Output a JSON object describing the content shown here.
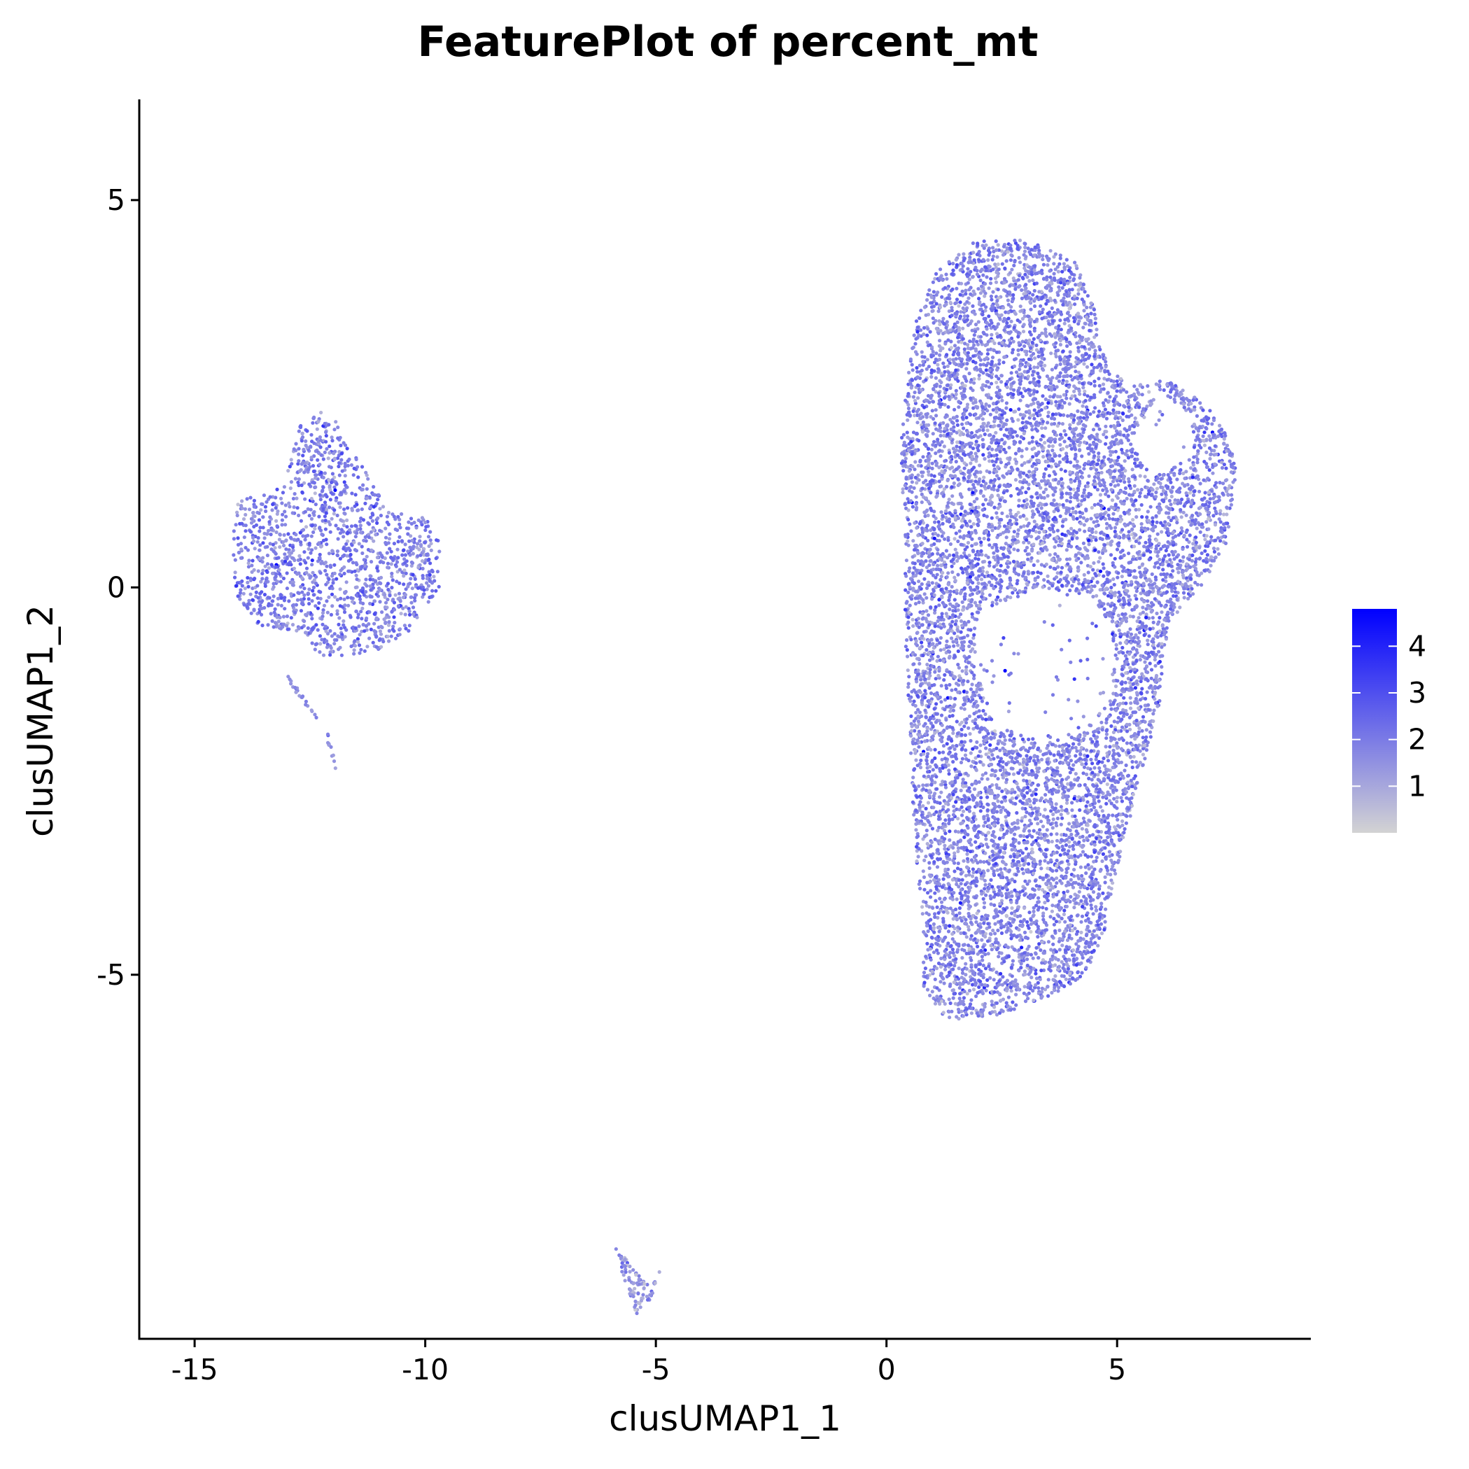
{
  "chart_data": {
    "type": "scatter",
    "title": "FeaturePlot of percent_mt",
    "xlabel": "clusUMAP1_1",
    "ylabel": "clusUMAP1_2",
    "xlim": [
      -16.2,
      9.2
    ],
    "ylim": [
      -9.7,
      6.3
    ],
    "xticks": [
      -15,
      -10,
      -5,
      0,
      5
    ],
    "xtick_labels": [
      "-15",
      "-10",
      "-5",
      "0",
      "5"
    ],
    "yticks": [
      -5,
      0,
      5
    ],
    "ytick_labels": [
      "-5",
      "0",
      "5"
    ],
    "grid": false,
    "legend_position": "right",
    "color_scale": {
      "low_color": "#d3d3d3",
      "high_color": "#0000ff",
      "min": 0,
      "max": 4.8,
      "ticks": [
        1,
        2,
        3,
        4
      ],
      "tick_labels": [
        "1",
        "2",
        "3",
        "4"
      ]
    },
    "clusters": [
      {
        "polygon": [
          [
            -14.1,
            1.1
          ],
          [
            -13.1,
            1.3
          ],
          [
            -12.7,
            2.1
          ],
          [
            -12.4,
            2.3
          ],
          [
            -12.0,
            2.2
          ],
          [
            -11.3,
            1.5
          ],
          [
            -10.8,
            1.0
          ],
          [
            -10.0,
            0.9
          ],
          [
            -9.6,
            0.5
          ],
          [
            -9.7,
            0.0
          ],
          [
            -10.4,
            -0.6
          ],
          [
            -11.0,
            -0.8
          ],
          [
            -11.8,
            -0.9
          ],
          [
            -12.3,
            -0.9
          ],
          [
            -12.6,
            -0.6
          ],
          [
            -13.6,
            -0.5
          ],
          [
            -14.1,
            -0.1
          ],
          [
            -14.2,
            0.6
          ]
        ],
        "n": 1500,
        "mean": 1.9
      },
      {
        "polygon": [
          [
            0.6,
            3.4
          ],
          [
            1.1,
            4.1
          ],
          [
            2.0,
            4.5
          ],
          [
            3.0,
            4.5
          ],
          [
            4.1,
            4.2
          ],
          [
            4.5,
            3.6
          ],
          [
            4.8,
            2.8
          ],
          [
            5.4,
            2.6
          ],
          [
            6.0,
            2.7
          ],
          [
            6.6,
            2.5
          ],
          [
            7.2,
            2.2
          ],
          [
            7.6,
            1.6
          ],
          [
            7.4,
            0.6
          ],
          [
            6.8,
            0.0
          ],
          [
            6.1,
            -0.5
          ],
          [
            5.9,
            -1.6
          ],
          [
            5.5,
            -2.5
          ],
          [
            5.0,
            -3.6
          ],
          [
            4.7,
            -4.5
          ],
          [
            4.3,
            -5.0
          ],
          [
            3.5,
            -5.3
          ],
          [
            2.6,
            -5.5
          ],
          [
            1.3,
            -5.6
          ],
          [
            0.8,
            -5.2
          ],
          [
            0.8,
            -4.4
          ],
          [
            0.6,
            -3.2
          ],
          [
            0.5,
            -1.8
          ],
          [
            0.4,
            -0.5
          ],
          [
            0.4,
            0.6
          ],
          [
            0.3,
            1.9
          ]
        ],
        "n": 9500,
        "mean": 1.8
      },
      {
        "polygon": [
          [
            -5.9,
            -8.5
          ],
          [
            -5.6,
            -8.7
          ],
          [
            -5.2,
            -9.0
          ],
          [
            -4.9,
            -8.8
          ],
          [
            -5.1,
            -9.2
          ],
          [
            -5.4,
            -9.4
          ],
          [
            -5.6,
            -9.1
          ]
        ],
        "n": 90,
        "mean": 1.3
      },
      {
        "polygon": [
          [
            -13.0,
            -1.1
          ],
          [
            -12.9,
            -1.3
          ],
          [
            -12.2,
            -1.8
          ],
          [
            -12.0,
            -2.3
          ],
          [
            -11.9,
            -2.4
          ],
          [
            -12.1,
            -1.9
          ]
        ],
        "n": 35,
        "mean": 1.6
      }
    ],
    "holes": [
      [
        [
          2.0,
          -0.3
        ],
        [
          3.3,
          0.0
        ],
        [
          4.4,
          -0.1
        ],
        [
          4.9,
          -0.5
        ],
        [
          4.9,
          -1.4
        ],
        [
          4.2,
          -1.9
        ],
        [
          3.4,
          -2.0
        ],
        [
          2.4,
          -1.8
        ],
        [
          1.9,
          -1.0
        ]
      ],
      [
        [
          5.9,
          2.5
        ],
        [
          6.5,
          2.3
        ],
        [
          6.7,
          1.7
        ],
        [
          5.7,
          1.4
        ],
        [
          5.3,
          1.9
        ]
      ]
    ]
  }
}
